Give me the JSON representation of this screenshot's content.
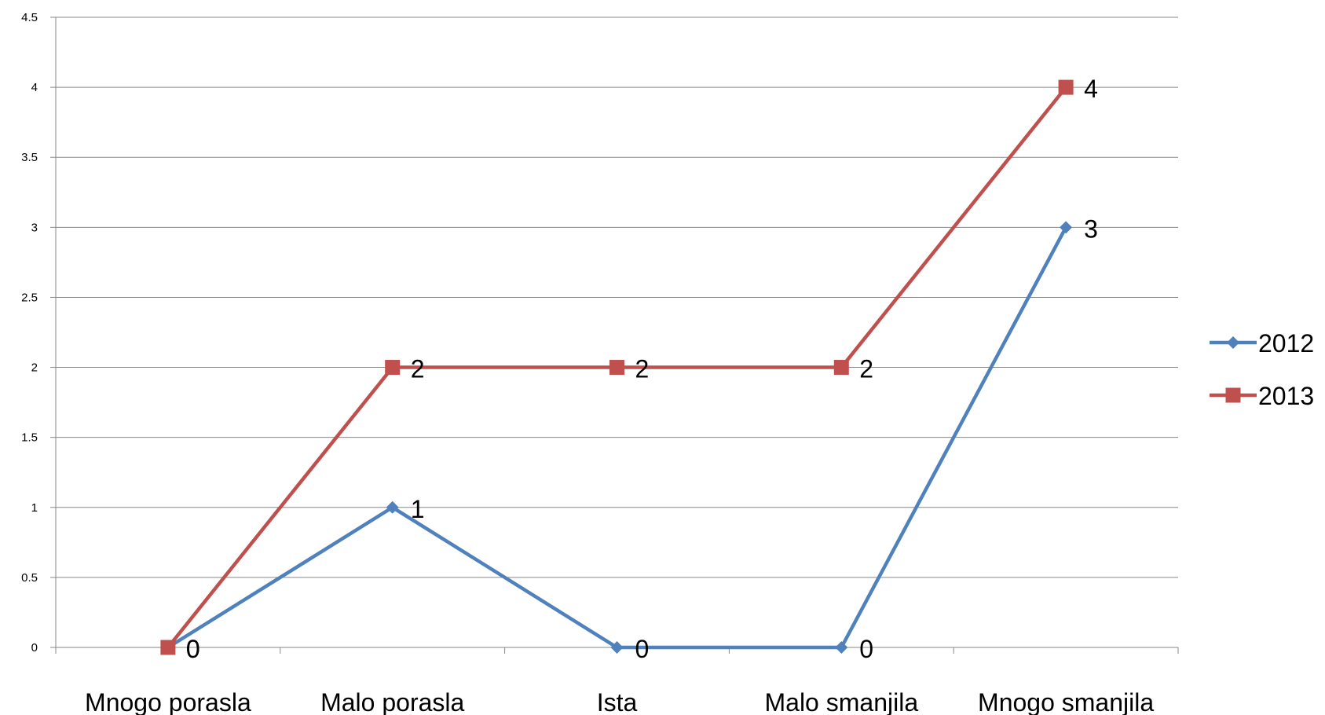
{
  "chart_data": {
    "type": "line",
    "categories": [
      "Mnogo porasla",
      "Malo porasla",
      "Ista",
      "Malo smanjila",
      "Mnogo smanjila"
    ],
    "series": [
      {
        "name": "2012",
        "values": [
          0,
          1,
          0,
          0,
          3
        ],
        "color": "#4F81BD",
        "marker": "diamond"
      },
      {
        "name": "2013",
        "values": [
          0,
          2,
          2,
          2,
          4
        ],
        "color": "#C0504D",
        "marker": "square"
      }
    ],
    "y_ticks": [
      "0",
      "0.5",
      "1",
      "1.5",
      "2",
      "2.5",
      "3",
      "3.5",
      "4",
      "4.5"
    ],
    "ylim": [
      0,
      4.5
    ],
    "data_labels": true,
    "grid": true,
    "legend_position": "right"
  }
}
